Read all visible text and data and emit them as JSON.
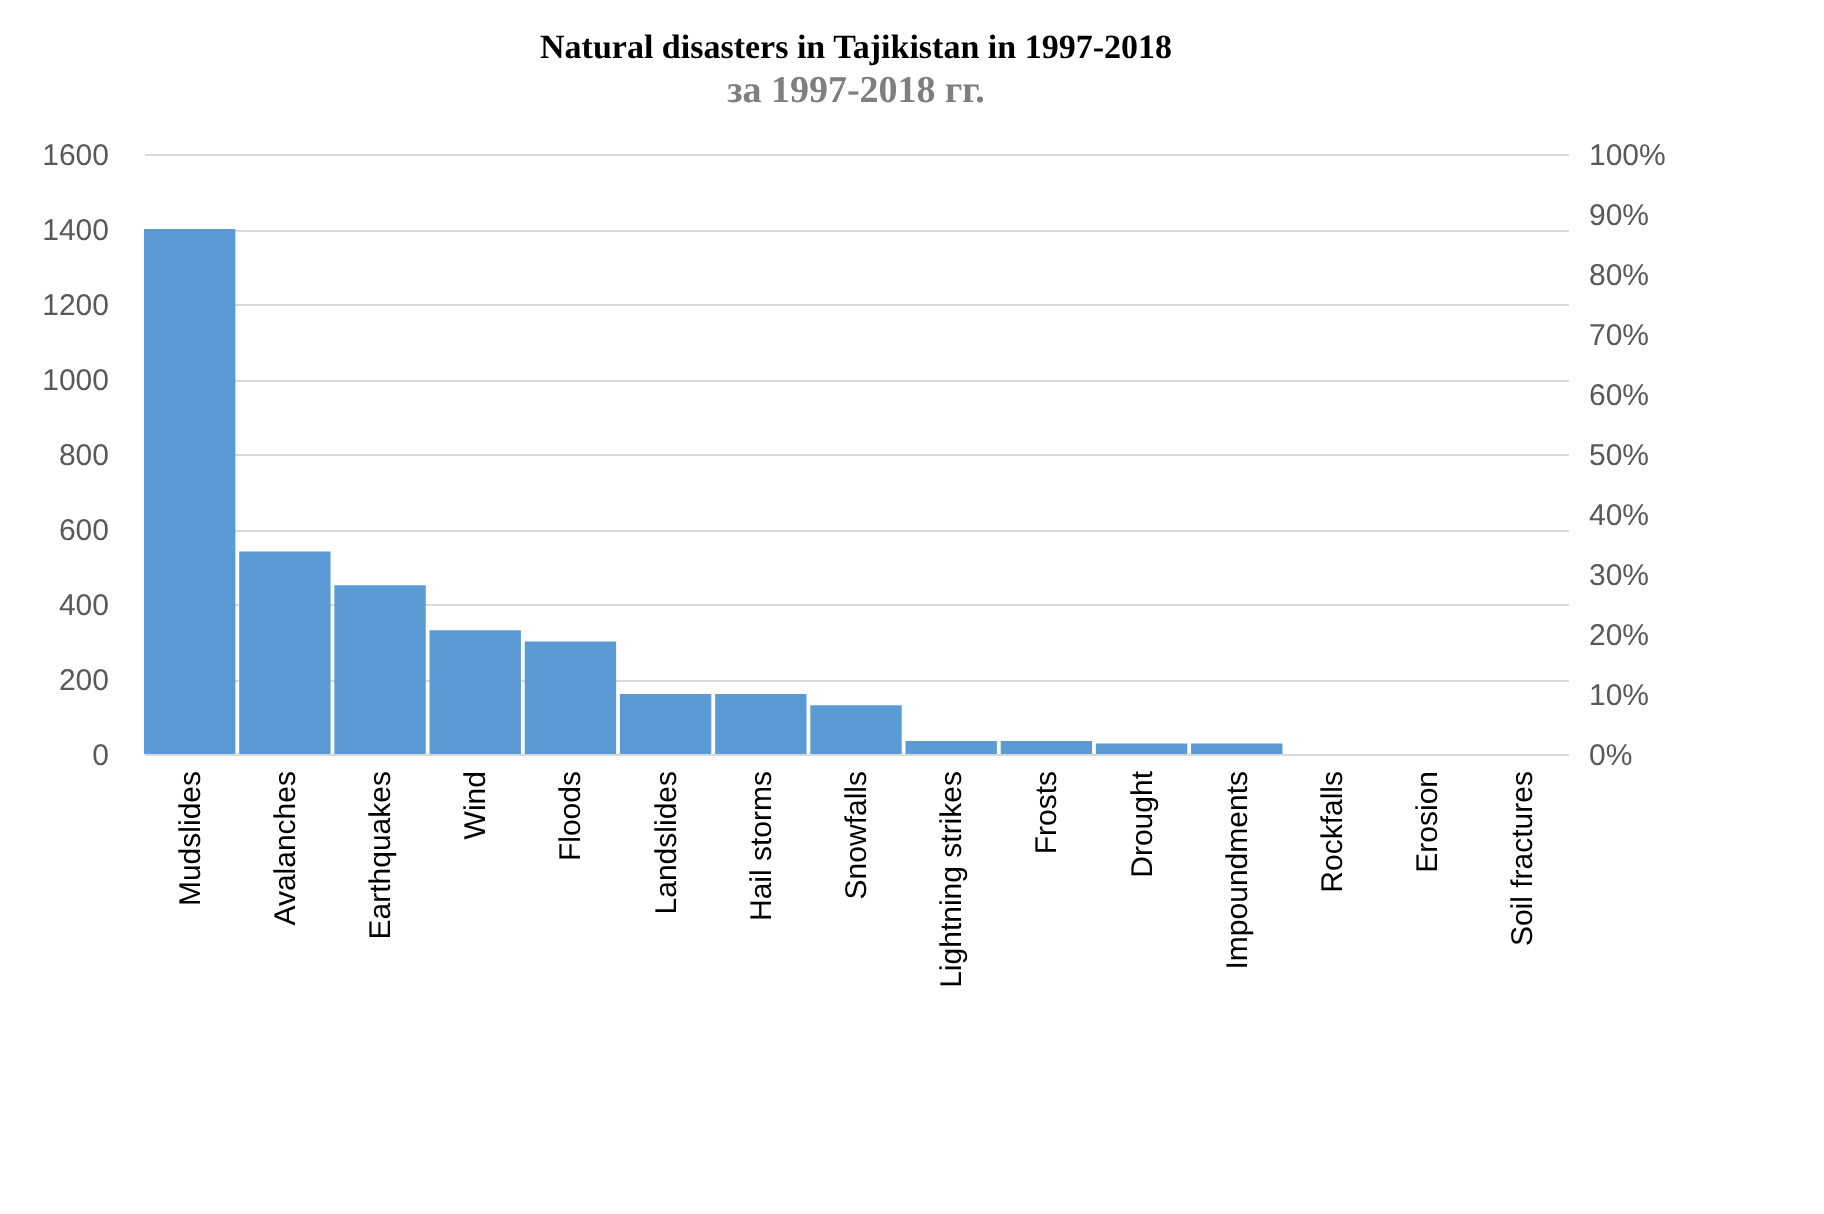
{
  "chart_data": {
    "type": "bar",
    "title": "Natural disasters in Tajikistan in 1997-2018",
    "subtitle": "за 1997-2018 гг.",
    "categories": [
      "Mudslides",
      "Avalanches",
      "Earthquakes",
      "Wind",
      "Floods",
      "Landslides",
      "Hail storms",
      "Snowfalls",
      "Lightning strikes",
      "Frosts",
      "Drought",
      "Impoundments",
      "Rockfalls",
      "Erosion",
      "Soil fractures"
    ],
    "values": [
      1400,
      540,
      450,
      330,
      300,
      160,
      160,
      130,
      35,
      35,
      28,
      28,
      0,
      0,
      0
    ],
    "color": "#5b9bd5",
    "ylim": [
      0,
      1600
    ],
    "yticks": [
      0,
      200,
      400,
      600,
      800,
      1000,
      1200,
      1400,
      1600
    ],
    "y2lim": [
      0,
      100
    ],
    "y2ticks": [
      {
        "value": 0,
        "label": "0%"
      },
      {
        "value": 10,
        "label": "10%"
      },
      {
        "value": 20,
        "label": "20%"
      },
      {
        "value": 30,
        "label": "30%"
      },
      {
        "value": 40,
        "label": "40%"
      },
      {
        "value": 50,
        "label": "50%"
      },
      {
        "value": 60,
        "label": "60%"
      },
      {
        "value": 70,
        "label": "70%"
      },
      {
        "value": 80,
        "label": "80%"
      },
      {
        "value": 90,
        "label": "90%"
      },
      {
        "value": 100,
        "label": "100%"
      }
    ],
    "grid": "y"
  }
}
